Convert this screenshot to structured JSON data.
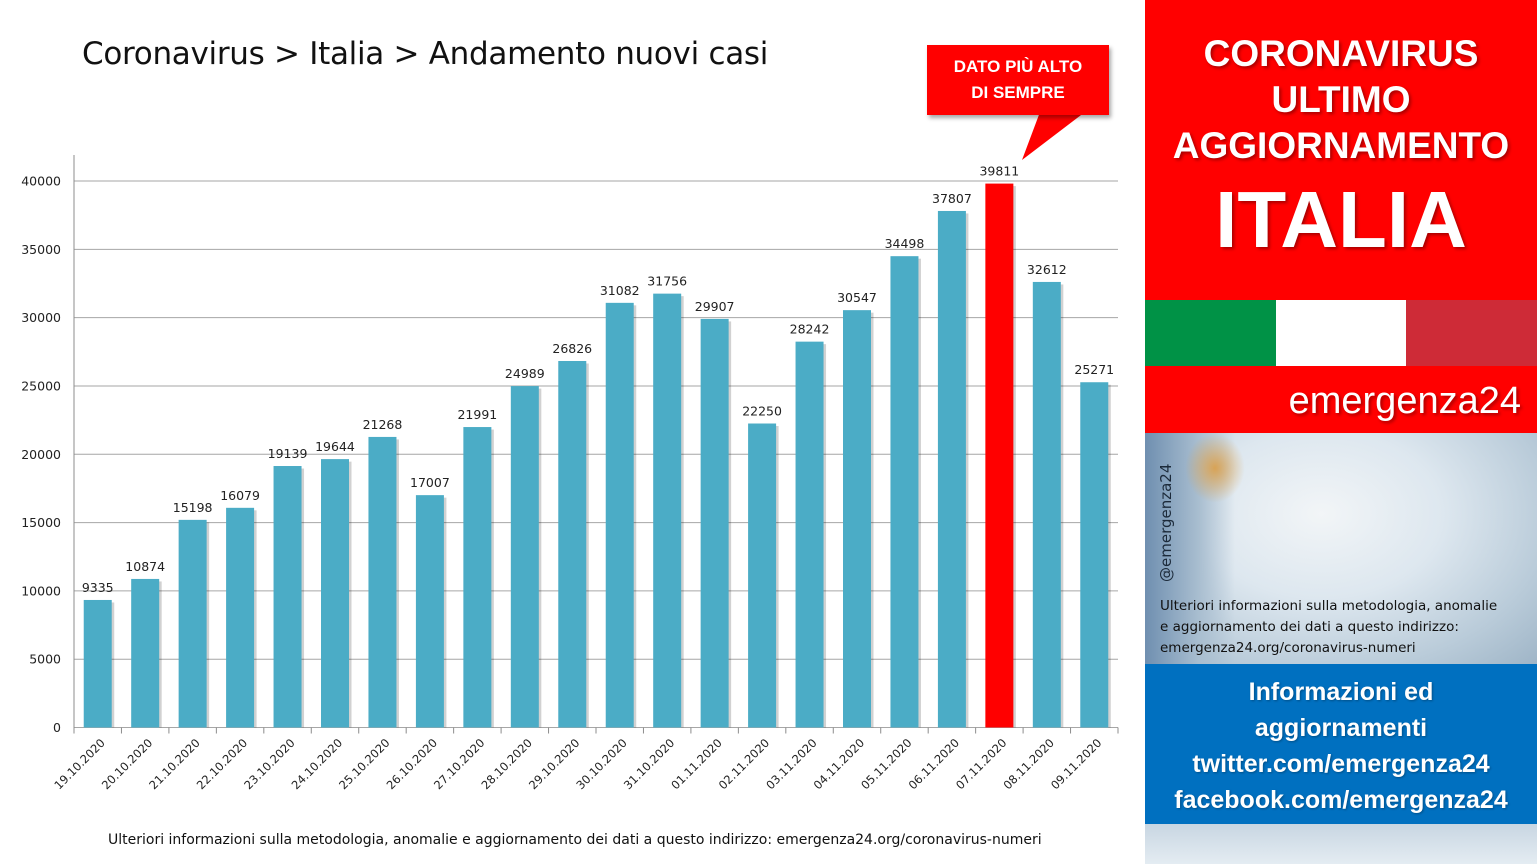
{
  "title": "Coronavirus > Italia > Andamento nuovi casi",
  "callout": {
    "line1": "DATO PIÙ ALTO",
    "line2": "DI SEMPRE"
  },
  "footer_note": "Ulteriori informazioni sulla metodologia, anomalie e aggiornamento dei dati a questo indirizzo: emergenza24.org/coronavirus-numeri",
  "panel": {
    "line1": "CORONAVIRUS",
    "line2": "ULTIMO",
    "line3": "AGGIORNAMENTO",
    "country": "ITALIA",
    "brand": "emergenza24",
    "handle": "@emergenza24",
    "info_line1": "Ulteriori informazioni sulla metodologia, anomalie",
    "info_line2": "e aggiornamento dei dati a questo indirizzo:",
    "info_line3": "emergenza24.org/coronavirus-numeri",
    "blue_line1": "Informazioni ed",
    "blue_line2": "aggiornamenti",
    "blue_line3": "twitter.com/emergenza24",
    "blue_line4": "facebook.com/emergenza24",
    "flag_colors": [
      "#009246",
      "#ffffff",
      "#ce2b37"
    ],
    "red": "#ff0000",
    "blue": "#0070c0"
  },
  "chart_data": {
    "type": "bar",
    "title": "Coronavirus > Italia > Andamento nuovi casi",
    "categories": [
      "19.10.2020",
      "20.10.2020",
      "21.10.2020",
      "22.10.2020",
      "23.10.2020",
      "24.10.2020",
      "25.10.2020",
      "26.10.2020",
      "27.10.2020",
      "28.10.2020",
      "29.10.2020",
      "30.10.2020",
      "31.10.2020",
      "01.11.2020",
      "02.11.2020",
      "03.11.2020",
      "04.11.2020",
      "05.11.2020",
      "06.11.2020",
      "07.11.2020",
      "08.11.2020",
      "09.11.2020"
    ],
    "values": [
      9335,
      10874,
      15198,
      16079,
      19139,
      19644,
      21268,
      17007,
      21991,
      24989,
      26826,
      31082,
      31756,
      29907,
      22250,
      28242,
      30547,
      34498,
      37807,
      39811,
      32612,
      25271
    ],
    "ylim": [
      0,
      40000
    ],
    "yticks": [
      0,
      5000,
      10000,
      15000,
      20000,
      25000,
      30000,
      35000,
      40000
    ],
    "grid": true,
    "bar_color": "#4bacc6",
    "highlight_index": 19,
    "highlight_color": "#ff0000",
    "xlabel": "",
    "ylabel": ""
  }
}
